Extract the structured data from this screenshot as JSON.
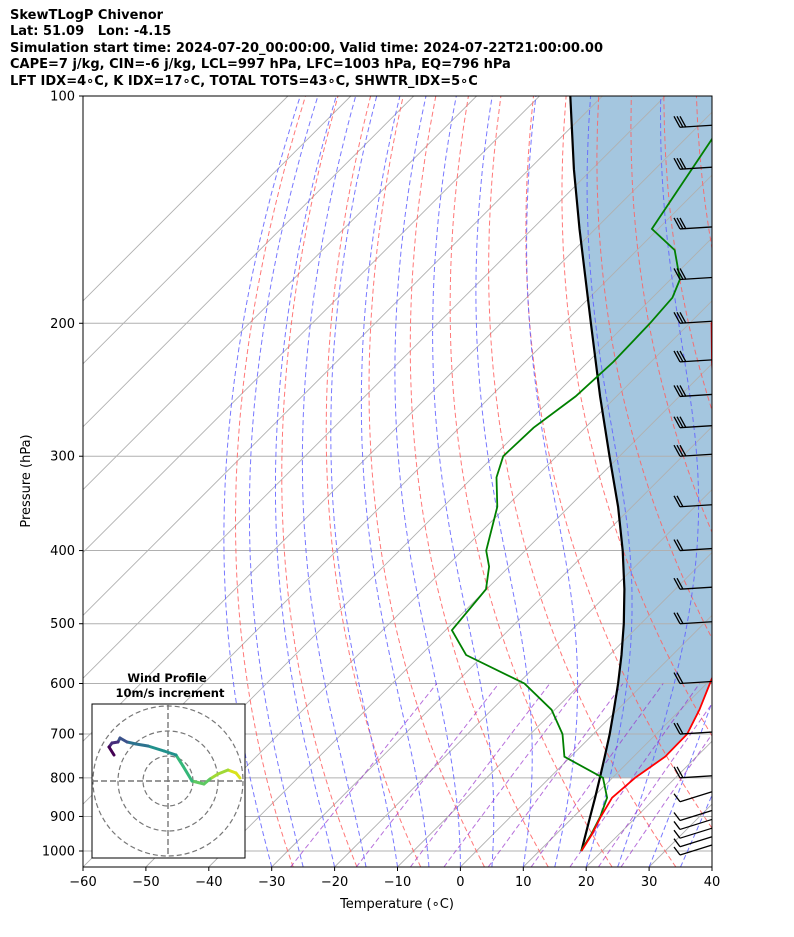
{
  "header": {
    "line1": "SkewTLogP Chivenor",
    "line2": "Lat: 51.09   Lon: -4.15",
    "line3": "Simulation start time: 2024-07-20_00:00:00, Valid time: 2024-07-22T21:00:00.00",
    "line4": "CAPE=7 j/kg, CIN=-6 j/kg, LCL=997 hPa, LFC=1003 hPa, EQ=796 hPa",
    "line5": "LFT IDX=4∘C, K IDX=17∘C, TOTAL TOTS=43∘C, SHWTR_IDX=5∘C"
  },
  "inset": {
    "title1": "Wind Profile",
    "title2": "10m/s increment"
  },
  "chart_data": {
    "type": "line",
    "title": "SkewTLogP Chivenor",
    "xlabel": "Temperature (∘C)",
    "ylabel": "Pressure (hPa)",
    "xlim": [
      -60,
      40
    ],
    "ylim": [
      1050,
      100
    ],
    "yscale": "log",
    "skew": true,
    "grid": true,
    "x_ticks": [
      -60,
      -50,
      -40,
      -30,
      -20,
      -10,
      0,
      10,
      20,
      30,
      40
    ],
    "x_tick_labels": [
      "−60",
      "−50",
      "−40",
      "−30",
      "−20",
      "−10",
      "0",
      "10",
      "20",
      "30",
      "40"
    ],
    "y_ticks": [
      1000,
      900,
      800,
      700,
      600,
      500,
      400,
      300,
      200,
      100
    ],
    "y_tick_labels": [
      "1000",
      "900",
      "800",
      "700",
      "600",
      "500",
      "400",
      "300",
      "200",
      "100"
    ],
    "colors": {
      "temperature": "#ff0000",
      "dewpoint": "#008000",
      "parcel": "#000000",
      "cape_fill": "#a4c6df",
      "dry_adiabats": "#ff6060",
      "moist_adiabats": "#6060ff",
      "mixing_ratio": "#9933cc",
      "isotherms": "#b0b0b0"
    },
    "series": [
      {
        "id": "temperature",
        "pressure": [
          1000,
          950,
          900,
          850,
          800,
          750,
          700,
          650,
          600,
          550,
          500,
          450,
          400,
          350,
          300,
          250,
          225,
          200,
          175,
          150,
          125,
          110,
          100
        ],
        "values": [
          16.7,
          15.7,
          14.3,
          13.1,
          13.6,
          15.0,
          14.9,
          13.0,
          10.5,
          7.8,
          4.5,
          -0.4,
          -7.5,
          -15.0,
          -24.0,
          -34.5,
          -40.3,
          -46.5,
          -51.3,
          -55.5,
          -59.5,
          -61.3,
          -62.5
        ]
      },
      {
        "id": "dewpoint",
        "pressure": [
          1000,
          950,
          900,
          850,
          800,
          750,
          700,
          650,
          600,
          550,
          510,
          450,
          420,
          400,
          350,
          320,
          300,
          275,
          250,
          225,
          200,
          185,
          175,
          160,
          150,
          100
        ],
        "values": [
          16.6,
          15.6,
          14.2,
          12.3,
          8.5,
          -1.0,
          -4.9,
          -10.5,
          -19.0,
          -32.8,
          -39.0,
          -40.1,
          -43.2,
          -46.2,
          -51.4,
          -56.2,
          -58.5,
          -58.2,
          -56.5,
          -56.0,
          -56.3,
          -56.8,
          -58.5,
          -64.0,
          -71.0,
          -78.0
        ]
      },
      {
        "id": "parcel",
        "pressure": [
          1000,
          950,
          900,
          850,
          800,
          750,
          700,
          650,
          600,
          550,
          500,
          450,
          400,
          350,
          300,
          250,
          200,
          150,
          125,
          100
        ],
        "values": [
          16.7,
          14.7,
          12.6,
          10.4,
          8.0,
          5.4,
          2.6,
          -0.6,
          -4.1,
          -8.1,
          -12.7,
          -18.1,
          -24.5,
          -32.2,
          -41.6,
          -52.6,
          -65.7,
          -82.5,
          -92.9,
          -105.1
        ]
      }
    ],
    "wind_barb_pressures": [
      1000,
      975,
      950,
      925,
      900,
      850,
      800,
      700,
      600,
      500,
      450,
      400,
      350,
      300,
      275,
      250,
      225,
      200,
      175,
      150,
      125,
      110
    ],
    "wind_profile": {
      "u": [
        7.2,
        6.8,
        6.0,
        5.0,
        4.2,
        3.6,
        2.4,
        1.5,
        0.8,
        -0.4,
        -2.0,
        -3.2,
        -4.1,
        -4.8,
        -5.0,
        -5.6,
        -5.9,
        -5.4
      ],
      "v": [
        0.3,
        0.8,
        1.1,
        0.7,
        0.2,
        -0.3,
        0.0,
        1.5,
        2.6,
        3.0,
        3.5,
        3.7,
        3.9,
        4.3,
        3.9,
        3.8,
        3.4,
        2.6
      ]
    }
  }
}
